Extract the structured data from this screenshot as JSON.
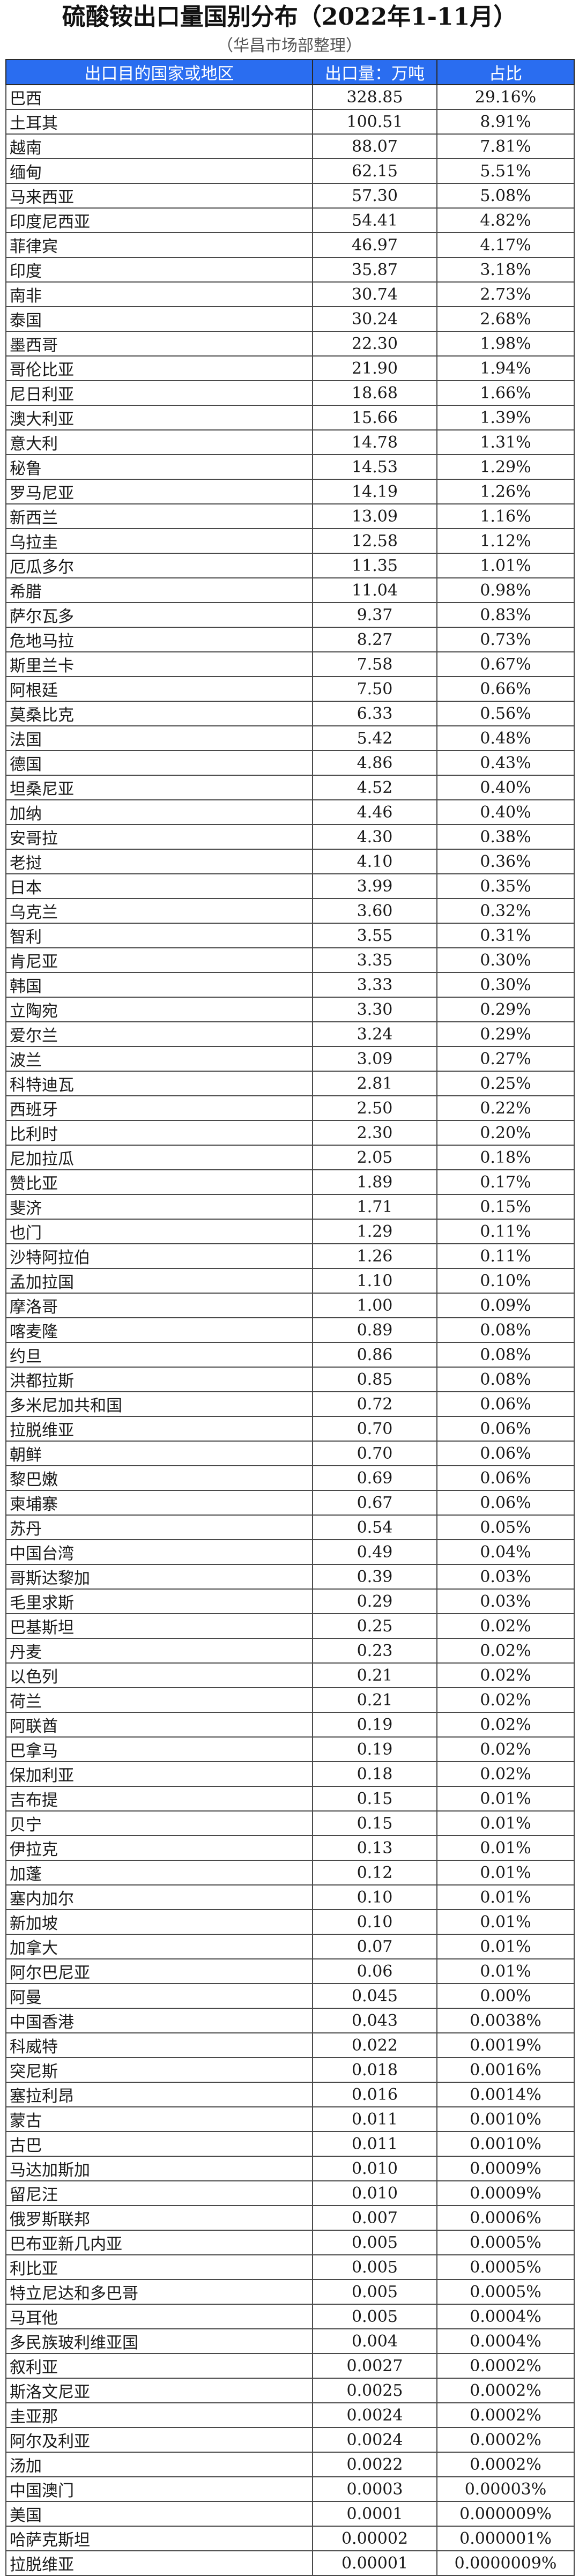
{
  "header": {
    "title": "硫酸铵出口量国别分布（2022年1-11月）",
    "subtitle": "（华昌市场部整理）"
  },
  "table": {
    "columns": [
      "出口目的国家或地区",
      "出口量：万吨",
      "占比"
    ],
    "rows": [
      [
        "巴西",
        "328.85",
        "29.16%"
      ],
      [
        "土耳其",
        "100.51",
        "8.91%"
      ],
      [
        "越南",
        "88.07",
        "7.81%"
      ],
      [
        "缅甸",
        "62.15",
        "5.51%"
      ],
      [
        "马来西亚",
        "57.30",
        "5.08%"
      ],
      [
        "印度尼西亚",
        "54.41",
        "4.82%"
      ],
      [
        "菲律宾",
        "46.97",
        "4.17%"
      ],
      [
        "印度",
        "35.87",
        "3.18%"
      ],
      [
        "南非",
        "30.74",
        "2.73%"
      ],
      [
        "泰国",
        "30.24",
        "2.68%"
      ],
      [
        "墨西哥",
        "22.30",
        "1.98%"
      ],
      [
        "哥伦比亚",
        "21.90",
        "1.94%"
      ],
      [
        "尼日利亚",
        "18.68",
        "1.66%"
      ],
      [
        "澳大利亚",
        "15.66",
        "1.39%"
      ],
      [
        "意大利",
        "14.78",
        "1.31%"
      ],
      [
        "秘鲁",
        "14.53",
        "1.29%"
      ],
      [
        "罗马尼亚",
        "14.19",
        "1.26%"
      ],
      [
        "新西兰",
        "13.09",
        "1.16%"
      ],
      [
        "乌拉圭",
        "12.58",
        "1.12%"
      ],
      [
        "厄瓜多尔",
        "11.35",
        "1.01%"
      ],
      [
        "希腊",
        "11.04",
        "0.98%"
      ],
      [
        "萨尔瓦多",
        "9.37",
        "0.83%"
      ],
      [
        "危地马拉",
        "8.27",
        "0.73%"
      ],
      [
        "斯里兰卡",
        "7.58",
        "0.67%"
      ],
      [
        "阿根廷",
        "7.50",
        "0.66%"
      ],
      [
        "莫桑比克",
        "6.33",
        "0.56%"
      ],
      [
        "法国",
        "5.42",
        "0.48%"
      ],
      [
        "德国",
        "4.86",
        "0.43%"
      ],
      [
        "坦桑尼亚",
        "4.52",
        "0.40%"
      ],
      [
        "加纳",
        "4.46",
        "0.40%"
      ],
      [
        "安哥拉",
        "4.30",
        "0.38%"
      ],
      [
        "老挝",
        "4.10",
        "0.36%"
      ],
      [
        "日本",
        "3.99",
        "0.35%"
      ],
      [
        "乌克兰",
        "3.60",
        "0.32%"
      ],
      [
        "智利",
        "3.55",
        "0.31%"
      ],
      [
        "肯尼亚",
        "3.35",
        "0.30%"
      ],
      [
        "韩国",
        "3.33",
        "0.30%"
      ],
      [
        "立陶宛",
        "3.30",
        "0.29%"
      ],
      [
        "爱尔兰",
        "3.24",
        "0.29%"
      ],
      [
        "波兰",
        "3.09",
        "0.27%"
      ],
      [
        "科特迪瓦",
        "2.81",
        "0.25%"
      ],
      [
        "西班牙",
        "2.50",
        "0.22%"
      ],
      [
        "比利时",
        "2.30",
        "0.20%"
      ],
      [
        "尼加拉瓜",
        "2.05",
        "0.18%"
      ],
      [
        "赞比亚",
        "1.89",
        "0.17%"
      ],
      [
        "斐济",
        "1.71",
        "0.15%"
      ],
      [
        "也门",
        "1.29",
        "0.11%"
      ],
      [
        "沙特阿拉伯",
        "1.26",
        "0.11%"
      ],
      [
        "孟加拉国",
        "1.10",
        "0.10%"
      ],
      [
        "摩洛哥",
        "1.00",
        "0.09%"
      ],
      [
        "喀麦隆",
        "0.89",
        "0.08%"
      ],
      [
        "约旦",
        "0.86",
        "0.08%"
      ],
      [
        "洪都拉斯",
        "0.85",
        "0.08%"
      ],
      [
        "多米尼加共和国",
        "0.72",
        "0.06%"
      ],
      [
        "拉脱维亚",
        "0.70",
        "0.06%"
      ],
      [
        "朝鲜",
        "0.70",
        "0.06%"
      ],
      [
        "黎巴嫩",
        "0.69",
        "0.06%"
      ],
      [
        "柬埔寨",
        "0.67",
        "0.06%"
      ],
      [
        "苏丹",
        "0.54",
        "0.05%"
      ],
      [
        "中国台湾",
        "0.49",
        "0.04%"
      ],
      [
        "哥斯达黎加",
        "0.39",
        "0.03%"
      ],
      [
        "毛里求斯",
        "0.29",
        "0.03%"
      ],
      [
        "巴基斯坦",
        "0.25",
        "0.02%"
      ],
      [
        "丹麦",
        "0.23",
        "0.02%"
      ],
      [
        "以色列",
        "0.21",
        "0.02%"
      ],
      [
        "荷兰",
        "0.21",
        "0.02%"
      ],
      [
        "阿联酋",
        "0.19",
        "0.02%"
      ],
      [
        "巴拿马",
        "0.19",
        "0.02%"
      ],
      [
        "保加利亚",
        "0.18",
        "0.02%"
      ],
      [
        "吉布提",
        "0.15",
        "0.01%"
      ],
      [
        "贝宁",
        "0.15",
        "0.01%"
      ],
      [
        "伊拉克",
        "0.13",
        "0.01%"
      ],
      [
        "加蓬",
        "0.12",
        "0.01%"
      ],
      [
        "塞内加尔",
        "0.10",
        "0.01%"
      ],
      [
        "新加坡",
        "0.10",
        "0.01%"
      ],
      [
        "加拿大",
        "0.07",
        "0.01%"
      ],
      [
        "阿尔巴尼亚",
        "0.06",
        "0.01%"
      ],
      [
        "阿曼",
        "0.045",
        "0.00%"
      ],
      [
        "中国香港",
        "0.043",
        "0.0038%"
      ],
      [
        "科威特",
        "0.022",
        "0.0019%"
      ],
      [
        "突尼斯",
        "0.018",
        "0.0016%"
      ],
      [
        "塞拉利昂",
        "0.016",
        "0.0014%"
      ],
      [
        "蒙古",
        "0.011",
        "0.0010%"
      ],
      [
        "古巴",
        "0.011",
        "0.0010%"
      ],
      [
        "马达加斯加",
        "0.010",
        "0.0009%"
      ],
      [
        "留尼汪",
        "0.010",
        "0.0009%"
      ],
      [
        "俄罗斯联邦",
        "0.007",
        "0.0006%"
      ],
      [
        "巴布亚新几内亚",
        "0.005",
        "0.0005%"
      ],
      [
        "利比亚",
        "0.005",
        "0.0005%"
      ],
      [
        "特立尼达和多巴哥",
        "0.005",
        "0.0005%"
      ],
      [
        "马耳他",
        "0.005",
        "0.0004%"
      ],
      [
        "多民族玻利维亚国",
        "0.004",
        "0.0004%"
      ],
      [
        "叙利亚",
        "0.0027",
        "0.0002%"
      ],
      [
        "斯洛文尼亚",
        "0.0025",
        "0.0002%"
      ],
      [
        "圭亚那",
        "0.0024",
        "0.0002%"
      ],
      [
        "阿尔及利亚",
        "0.0024",
        "0.0002%"
      ],
      [
        "汤加",
        "0.0022",
        "0.0002%"
      ],
      [
        "中国澳门",
        "0.0003",
        "0.00003%"
      ],
      [
        "美国",
        "0.0001",
        "0.000009%"
      ],
      [
        "哈萨克斯坦",
        "0.00002",
        "0.000001%"
      ],
      [
        "拉脱维亚",
        "0.00001",
        "0.0000009%"
      ]
    ]
  }
}
